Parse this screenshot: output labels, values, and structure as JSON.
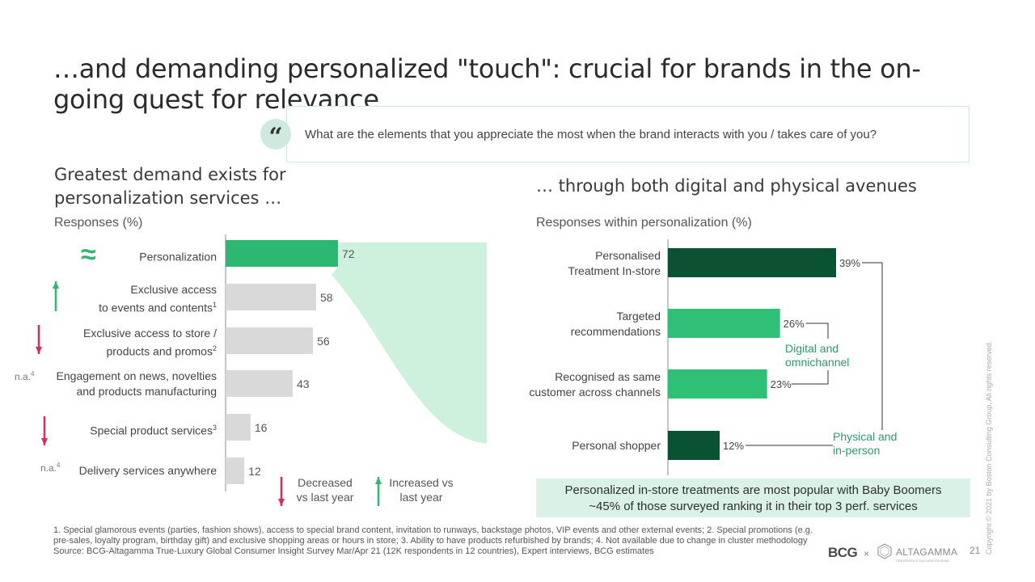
{
  "title": "…and demanding personalized \"touch\": crucial for brands in the on-going quest for relevance",
  "question": {
    "quote_mark": "“",
    "text": "What are the elements that you appreciate the most when the brand interacts with you / takes care of you?"
  },
  "left_panel": {
    "heading_line1": "Greatest demand exists for",
    "heading_line2": "personalization services …",
    "responses_label": "Responses (%)",
    "approx_symbol": "≈",
    "na_label": "n.a.",
    "na_sup": "4",
    "rows": [
      {
        "line1": "Personalization",
        "line2": "",
        "sup": "",
        "trend": "approx"
      },
      {
        "line1": "Exclusive access",
        "line2": "to events and contents",
        "sup": "1",
        "trend": "up"
      },
      {
        "line1": "Exclusive access to store /",
        "line2": "products and promos",
        "sup": "2",
        "trend": "down"
      },
      {
        "line1": "Engagement on news, novelties",
        "line2": "and products manufacturing",
        "sup": "",
        "trend": "na"
      },
      {
        "line1": "Special product services",
        "line2": "",
        "sup": "3",
        "trend": "down"
      },
      {
        "line1": "Delivery services anywhere",
        "line2": "",
        "sup": "",
        "trend": "na"
      }
    ],
    "legend": {
      "decreased_line1": "Decreased",
      "decreased_line2": "vs last year",
      "increased_line1": "Increased vs",
      "increased_line2": "last year"
    }
  },
  "right_panel": {
    "heading": "… through both digital and physical avenues",
    "responses_label": "Responses within personalization (%)",
    "rows": [
      {
        "line1": "Personalised",
        "line2": "Treatment In-store"
      },
      {
        "line1": "Targeted",
        "line2": "recommendations"
      },
      {
        "line1": "Recognised as same",
        "line2": "customer across channels"
      },
      {
        "line1": "Personal shopper",
        "line2": ""
      }
    ],
    "annotation_digital_line1": "Digital and",
    "annotation_digital_line2": "omnichannel",
    "annotation_physical_line1": "Physical and",
    "annotation_physical_line2": "in-person",
    "takeaway_line1": "Personalized in-store treatments are most popular with Baby Boomers",
    "takeaway_line2": "~45% of those surveyed ranking it in their top 3 perf. services"
  },
  "chart_data": [
    {
      "type": "bar",
      "orientation": "horizontal",
      "title": "Responses (%)",
      "categories": [
        "Personalization",
        "Exclusive access to events and contents",
        "Exclusive access to store / products and promos",
        "Engagement on news, novelties and products manufacturing",
        "Special product services",
        "Delivery services anywhere"
      ],
      "values": [
        72,
        58,
        56,
        43,
        16,
        12
      ],
      "value_labels": [
        "72",
        "58",
        "56",
        "43",
        "16",
        "12"
      ],
      "xlim": [
        0,
        72
      ]
    },
    {
      "type": "bar",
      "orientation": "horizontal",
      "title": "Responses within personalization (%)",
      "categories": [
        "Personalised Treatment In-store",
        "Targeted recommendations",
        "Recognised as same customer across channels",
        "Personal shopper"
      ],
      "values": [
        39,
        26,
        23,
        12
      ],
      "value_labels": [
        "39%",
        "26%",
        "23%",
        "12%"
      ],
      "groups": [
        "Physical and in-person",
        "Digital and omnichannel",
        "Digital and omnichannel",
        "Physical and in-person"
      ],
      "xlim": [
        0,
        39
      ]
    }
  ],
  "colors": {
    "highlight_bar": "#2db872",
    "grey_bar": "#d9d9d9",
    "dark_green_bar": "#0a5232",
    "mid_green_bar": "#2fbf75",
    "fan_fill": "#c4efd6",
    "up_arrow": "#2db872",
    "down_arrow": "#d42a5f",
    "annotation_green": "#2a9d6a"
  },
  "footnotes": {
    "line1": "1. Special glamorous events (parties, fashion shows), access to special brand content, invitation to runways, backstage photos, VIP events and other external events; 2. Special promotions (e.g.",
    "line2": "pre-sales, loyalty program, birthday gift) and exclusive shopping areas or hours in store; 3. Ability to have products refurbished by brands; 4. Not available due to change in cluster methodology",
    "line3": "Source: BCG-Altagamma True-Luxury Global Consumer Insight Survey Mar/Apr 21 (12K respondents in 12 countries), Expert interviews, BCG estimates"
  },
  "footer": {
    "bcg": "BCG",
    "times": "×",
    "altagamma": "ALTAGAMMA",
    "altagamma_tag": "CREATIVITÀ E CULTURA ITALIANA",
    "page": "21",
    "copyright": "Copyright © 2021 by Boston Consulting Group. All rights reserved."
  }
}
